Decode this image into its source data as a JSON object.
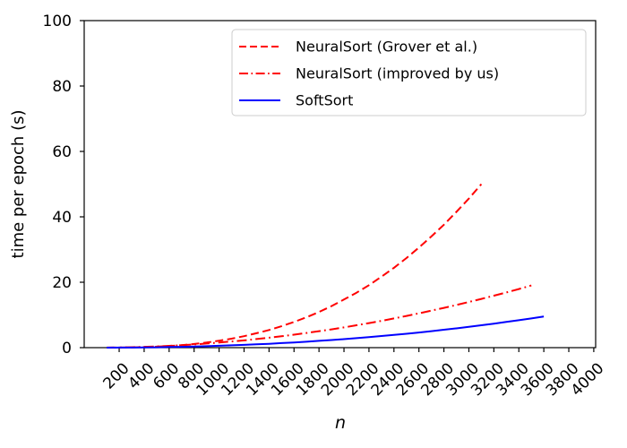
{
  "figure": {
    "background": "#ffffff",
    "text_color": "#000000",
    "axis_color": "#000000"
  },
  "chart_data": {
    "type": "line",
    "title": "",
    "xlabel": "n",
    "ylabel": "time per epoch (s)",
    "xlim": [
      -80,
      4015
    ],
    "ylim": [
      0,
      100
    ],
    "xticks": [
      200,
      400,
      600,
      800,
      1000,
      1200,
      1400,
      1600,
      1800,
      2000,
      2200,
      2400,
      2600,
      2800,
      3000,
      3200,
      3400,
      3600,
      3800,
      4000
    ],
    "yticks": [
      0,
      20,
      40,
      60,
      80,
      100
    ],
    "xtick_rotation_deg": 45,
    "grid": false,
    "legend": {
      "position": "upper center inside",
      "background": "#ffffff",
      "border_color": "#cccccc"
    },
    "series": [
      {
        "name": "NeuralSort (Grover et al.)",
        "color": "#ff0000",
        "line_style": "dashed",
        "line_width": 2,
        "x": [
          100,
          200,
          300,
          400,
          500,
          600,
          700,
          800,
          900,
          1000,
          1100,
          1200,
          1300,
          1400,
          1500,
          1600,
          1700,
          1800,
          1900,
          2000,
          2100,
          2200,
          2300,
          2400,
          2500,
          2600,
          2700,
          2800,
          2900,
          3000,
          3100
        ],
        "y": [
          0.0,
          0.02,
          0.07,
          0.16,
          0.3,
          0.5,
          0.78,
          1.12,
          1.56,
          2.1,
          2.75,
          3.5,
          4.4,
          5.4,
          6.55,
          7.85,
          9.3,
          10.9,
          12.7,
          14.7,
          16.8,
          19.1,
          21.7,
          24.4,
          27.4,
          30.6,
          34.0,
          37.6,
          41.5,
          45.6,
          50.0
        ]
      },
      {
        "name": "NeuralSort (improved by us)",
        "color": "#ff0000",
        "line_style": "dashdot",
        "line_width": 2,
        "x": [
          100,
          200,
          300,
          400,
          500,
          600,
          700,
          800,
          900,
          1000,
          1100,
          1200,
          1300,
          1400,
          1500,
          1600,
          1700,
          1800,
          1900,
          2000,
          2100,
          2200,
          2300,
          2400,
          2500,
          2600,
          2700,
          2800,
          2900,
          3000,
          3100,
          3200,
          3300,
          3400,
          3500
        ],
        "y": [
          0.02,
          0.06,
          0.14,
          0.25,
          0.39,
          0.56,
          0.76,
          0.99,
          1.26,
          1.55,
          1.88,
          2.23,
          2.62,
          3.04,
          3.49,
          3.97,
          4.48,
          5.03,
          5.6,
          6.2,
          6.84,
          7.51,
          8.2,
          8.93,
          9.69,
          10.48,
          11.31,
          12.16,
          13.04,
          13.96,
          14.91,
          15.88,
          16.89,
          17.93,
          19.0
        ]
      },
      {
        "name": "SoftSort",
        "color": "#0000ff",
        "line_style": "solid",
        "line_width": 2,
        "x": [
          100,
          200,
          300,
          400,
          500,
          600,
          700,
          800,
          900,
          1000,
          1100,
          1200,
          1300,
          1400,
          1500,
          1600,
          1700,
          1800,
          1900,
          2000,
          2100,
          2200,
          2300,
          2400,
          2500,
          2600,
          2700,
          2800,
          2900,
          3000,
          3100,
          3200,
          3300,
          3400,
          3500,
          3600
        ],
        "y": [
          0.0,
          0.02,
          0.04,
          0.08,
          0.12,
          0.18,
          0.26,
          0.35,
          0.45,
          0.57,
          0.7,
          0.85,
          1.01,
          1.19,
          1.39,
          1.6,
          1.82,
          2.07,
          2.33,
          2.61,
          2.9,
          3.21,
          3.55,
          3.89,
          4.26,
          4.64,
          5.05,
          5.47,
          5.9,
          6.36,
          6.84,
          7.33,
          7.85,
          8.38,
          8.93,
          9.5
        ]
      }
    ]
  }
}
